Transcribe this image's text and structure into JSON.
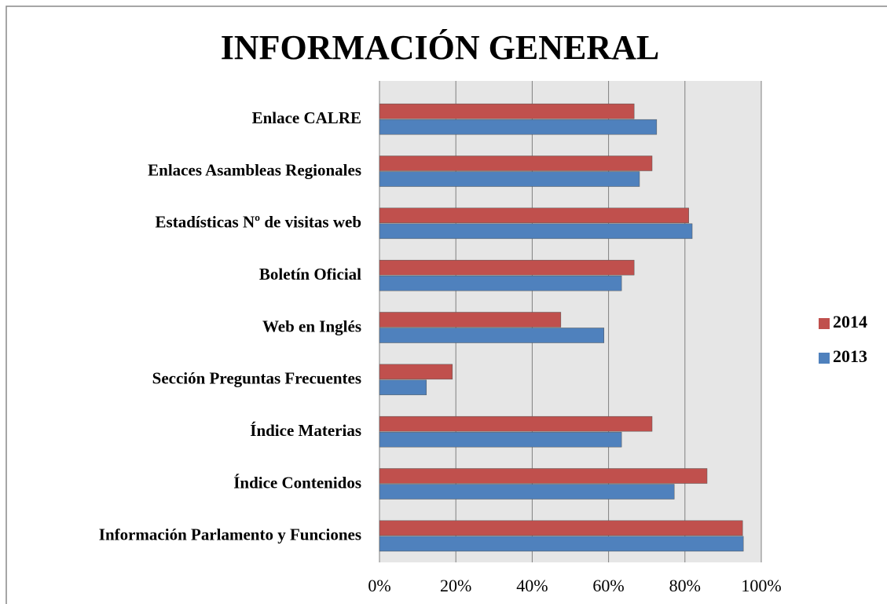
{
  "chart_data": {
    "type": "barh",
    "title": "INFORMACIÓN GENERAL",
    "categories": [
      "Enlace CALRE",
      "Enlaces Asambleas Regionales",
      "Estadísticas Nº de visitas web",
      "Boletín Oficial",
      "Web en Inglés",
      "Sección Preguntas Frecuentes",
      "Índice Materias",
      "Índice Contenidos",
      "Información Parlamento y Funciones"
    ],
    "series": [
      {
        "name": "2014",
        "color": "#c0504d",
        "values": [
          66.7,
          71.4,
          81,
          66.7,
          47.5,
          19.1,
          71.4,
          85.8,
          95.1
        ]
      },
      {
        "name": "2013",
        "color": "#4f81bd",
        "values": [
          72.6,
          68.1,
          81.9,
          63.4,
          58.8,
          12.3,
          63.4,
          77.2,
          95.3
        ]
      }
    ],
    "xlim": [
      0,
      100
    ],
    "xticks": [
      {
        "value": 0,
        "label": "0%"
      },
      {
        "value": 20,
        "label": "20%"
      },
      {
        "value": 40,
        "label": "40%"
      },
      {
        "value": 60,
        "label": "60%"
      },
      {
        "value": 80,
        "label": "80%"
      },
      {
        "value": 100,
        "label": "100%"
      }
    ],
    "grid": true,
    "legend": "right"
  }
}
